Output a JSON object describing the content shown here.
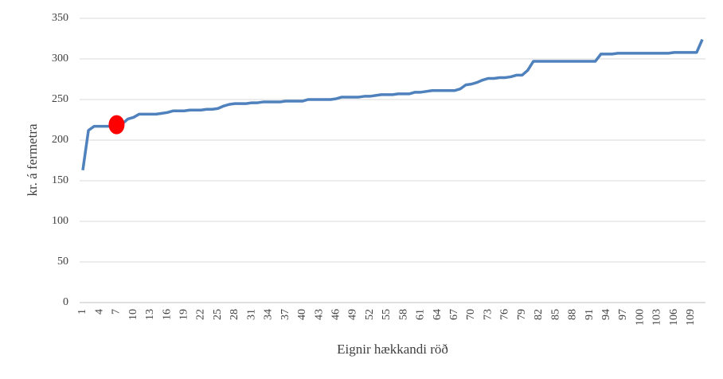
{
  "chart_data": {
    "type": "line",
    "y_label": "kr. á fermetra",
    "x_label": "Eignir hækkandi röð",
    "categories": [
      "1",
      null,
      null,
      "4",
      null,
      null,
      "7",
      null,
      null,
      "10",
      null,
      null,
      "13",
      null,
      null,
      "16",
      null,
      null,
      "19",
      null,
      null,
      "22",
      null,
      null,
      "25",
      null,
      null,
      "28",
      null,
      null,
      "31",
      null,
      null,
      "34",
      null,
      null,
      "37",
      null,
      null,
      "40",
      null,
      null,
      "43",
      null,
      null,
      "46",
      null,
      null,
      "49",
      null,
      null,
      "52",
      null,
      null,
      "55",
      null,
      null,
      "58",
      null,
      null,
      "61",
      null,
      null,
      "64",
      null,
      null,
      "67",
      null,
      null,
      "70",
      null,
      null,
      "73",
      null,
      null,
      "76",
      null,
      null,
      "79",
      null,
      null,
      "82",
      null,
      null,
      "85",
      null,
      null,
      "88",
      null,
      null,
      "91",
      null,
      null,
      "94",
      null,
      null,
      "97",
      null,
      null,
      "100",
      null,
      null,
      "103",
      null,
      null,
      "106",
      null,
      null,
      "109",
      null,
      null
    ],
    "values": [
      163,
      212,
      217,
      217,
      217,
      217,
      219,
      220,
      226,
      228,
      232,
      232,
      232,
      232,
      233,
      234,
      236,
      236,
      236,
      237,
      237,
      237,
      238,
      238,
      239,
      242,
      244,
      245,
      245,
      245,
      246,
      246,
      247,
      247,
      247,
      247,
      248,
      248,
      248,
      248,
      250,
      250,
      250,
      250,
      250,
      251,
      253,
      253,
      253,
      253,
      254,
      254,
      255,
      256,
      256,
      256,
      257,
      257,
      257,
      259,
      259,
      260,
      261,
      261,
      261,
      261,
      261,
      263,
      268,
      269,
      271,
      274,
      276,
      276,
      277,
      277,
      278,
      280,
      280,
      286,
      297,
      297,
      297,
      297,
      297,
      297,
      297,
      297,
      297,
      297,
      297,
      297,
      306,
      306,
      306,
      307,
      307,
      307,
      307,
      307,
      307,
      307,
      307,
      307,
      307,
      308,
      308,
      308,
      308,
      308,
      324
    ],
    "color": "#4f81bd",
    "highlight": {
      "category": "7",
      "color": "#ff0000"
    },
    "ylim": [
      0,
      350
    ],
    "yticks": [
      0,
      50,
      100,
      150,
      200,
      250,
      300,
      350
    ],
    "grid": true
  }
}
